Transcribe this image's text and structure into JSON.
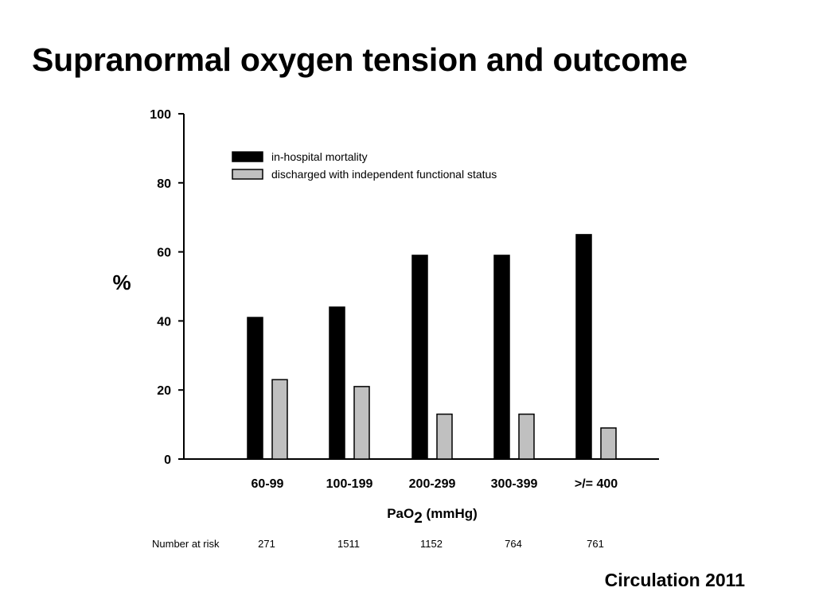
{
  "slide": {
    "title": "Supranormal oxygen tension and outcome",
    "citation": "Circulation 2011"
  },
  "chart_data": {
    "type": "bar",
    "title": "",
    "ylabel": "%",
    "xlabel": {
      "main": "PaO",
      "subscript": "2",
      "suffix": " (mmHg)"
    },
    "ylim": [
      0,
      100
    ],
    "yticks": [
      0,
      20,
      40,
      60,
      80,
      100
    ],
    "grid": false,
    "legend_position": "top-left",
    "categories": [
      "60-99",
      "100-199",
      "200-299",
      "300-399",
      ">/= 400"
    ],
    "series": [
      {
        "name": "in-hospital mortality",
        "color": "#000000",
        "values": [
          41,
          44,
          59,
          59,
          65
        ]
      },
      {
        "name": "discharged with independent functional status",
        "color": "#c0c0c0",
        "values": [
          23,
          21,
          13,
          13,
          9
        ]
      }
    ],
    "number_at_risk": {
      "label": "Number at risk",
      "values": [
        "271",
        "1511",
        "1152",
        "764",
        "761"
      ]
    }
  }
}
